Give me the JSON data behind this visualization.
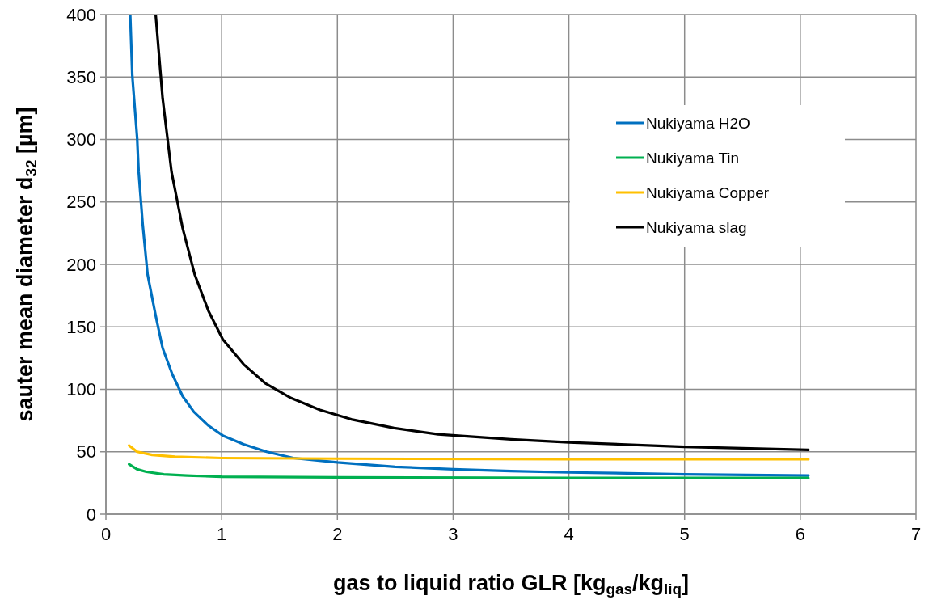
{
  "chart_data": {
    "type": "line",
    "xlabel": "gas to liquid ratio GLR [kg$_{gas}$/kg$_{liq}$]",
    "ylabel": "sauter mean diameter d$_{32}$ [µm]",
    "xlim": [
      0,
      7
    ],
    "xticks": [
      0,
      1,
      2,
      3,
      4,
      5,
      6,
      7
    ],
    "ylim": [
      0,
      400
    ],
    "yticks": [
      0,
      50,
      100,
      150,
      200,
      250,
      300,
      350,
      400
    ],
    "grid": true,
    "legend": "top right",
    "line_style": "solid",
    "marker": "none",
    "series": [
      {
        "name": "Nukiyama H2O",
        "color": "#0070c0",
        "x": [
          0.21,
          0.228,
          0.27,
          0.283,
          0.318,
          0.36,
          0.43,
          0.49,
          0.574,
          0.663,
          0.76,
          0.885,
          1.01,
          1.19,
          1.39,
          1.62,
          2,
          2.5,
          3,
          3.5,
          4,
          5,
          6.07
        ],
        "values": [
          400,
          351,
          301,
          274,
          232,
          192,
          159,
          133,
          112,
          94.5,
          82,
          71,
          63,
          56,
          50,
          45,
          41.5,
          38,
          36,
          34.5,
          33.5,
          32,
          31
        ]
      },
      {
        "name": "Nukiyama Tin",
        "color": "#00b050",
        "x": [
          0.2,
          0.27,
          0.35,
          0.5,
          0.7,
          1,
          2,
          4,
          6.07
        ],
        "values": [
          40,
          36,
          34,
          32,
          31,
          30,
          29.5,
          29,
          29
        ]
      },
      {
        "name": "Nukiyama Copper",
        "color": "#ffc000",
        "x": [
          0.2,
          0.27,
          0.4,
          0.6,
          1,
          2,
          4,
          6.07
        ],
        "values": [
          55,
          50,
          47.5,
          46,
          45,
          44.5,
          44,
          44
        ]
      },
      {
        "name": "Nukiyama slag",
        "color": "#000000",
        "x": [
          0.43,
          0.49,
          0.567,
          0.663,
          0.767,
          0.885,
          1.01,
          1.19,
          1.375,
          1.6,
          1.85,
          2.12,
          2.49,
          2.87,
          3.5,
          4,
          5,
          6.07
        ],
        "values": [
          400,
          333,
          274,
          229,
          192,
          163,
          140,
          120,
          105,
          93,
          83.5,
          76,
          69,
          64,
          60,
          57.5,
          54,
          51.5
        ]
      }
    ]
  }
}
